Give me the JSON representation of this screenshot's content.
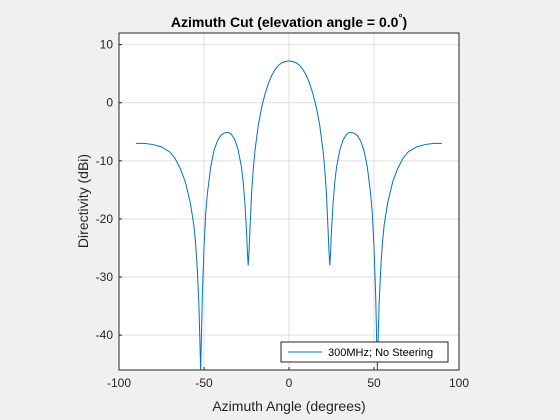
{
  "chart_data": {
    "type": "line",
    "title_main": "Azimuth Cut (elevation angle = 0.0",
    "title_degree": "°",
    "title_close": ")",
    "xlabel": "Azimuth Angle (degrees)",
    "ylabel": "Directivity (dBi)",
    "xlim": [
      -100,
      100
    ],
    "ylim": [
      -46,
      12
    ],
    "xticks": [
      -100,
      -50,
      0,
      50,
      100
    ],
    "yticks": [
      10,
      0,
      -10,
      -20,
      -30,
      -40
    ],
    "grid": true,
    "legend_placement": "bottom-right",
    "series": [
      {
        "name": "300MHz; No Steering",
        "color": "#0072bd",
        "x": [
          -90,
          -85,
          -80,
          -75,
          -70,
          -67,
          -64,
          -61,
          -58,
          -56,
          -55,
          -54,
          -53,
          -52.5,
          -52,
          -51.5,
          -51,
          -50,
          -49,
          -48,
          -46,
          -44,
          -42,
          -40,
          -38,
          -36,
          -35,
          -34,
          -32,
          -30,
          -28,
          -27,
          -26,
          -25,
          -24.5,
          -24,
          -23.5,
          -23,
          -22,
          -21,
          -20,
          -18,
          -16,
          -14,
          -12,
          -10,
          -8,
          -6,
          -4,
          -2,
          0,
          2,
          4,
          6,
          8,
          10,
          12,
          14,
          16,
          18,
          20,
          21,
          22,
          23,
          23.5,
          24,
          24.5,
          25,
          26,
          27,
          28,
          30,
          32,
          34,
          35,
          36,
          38,
          40,
          42,
          44,
          46,
          48,
          49,
          50,
          51,
          51.5,
          52,
          52.5,
          53,
          54,
          55,
          56,
          58,
          61,
          64,
          67,
          70,
          75,
          80,
          85,
          90
        ],
        "y": [
          -7,
          -7,
          -7.2,
          -7.6,
          -8.5,
          -9.6,
          -11.3,
          -13.6,
          -17.3,
          -21,
          -24,
          -28.3,
          -34.8,
          -40,
          -46,
          -40,
          -33.3,
          -24.9,
          -19,
          -15.6,
          -10.9,
          -8.1,
          -6.5,
          -5.6,
          -5.2,
          -5.1,
          -5.2,
          -5.4,
          -6.3,
          -8,
          -11,
          -13.5,
          -17,
          -22,
          -25.5,
          -28,
          -25.5,
          -22,
          -15.5,
          -11.3,
          -8.2,
          -3.7,
          -0.7,
          1.6,
          3.4,
          4.8,
          5.8,
          6.5,
          6.9,
          7.1,
          7.2,
          7.1,
          6.9,
          6.5,
          5.8,
          4.8,
          3.4,
          1.6,
          -0.7,
          -3.7,
          -8.2,
          -11.3,
          -15.5,
          -22,
          -25.5,
          -28,
          -25.5,
          -22,
          -17,
          -13.5,
          -11,
          -8,
          -6.3,
          -5.4,
          -5.2,
          -5.1,
          -5.2,
          -5.6,
          -6.5,
          -8.1,
          -10.9,
          -15.6,
          -19,
          -24.9,
          -33.3,
          -40,
          -46,
          -40,
          -34.8,
          -28.3,
          -24,
          -21,
          -17.3,
          -13.6,
          -11.3,
          -9.6,
          -8.5,
          -7.6,
          -7.2,
          -7,
          -7
        ]
      }
    ]
  }
}
